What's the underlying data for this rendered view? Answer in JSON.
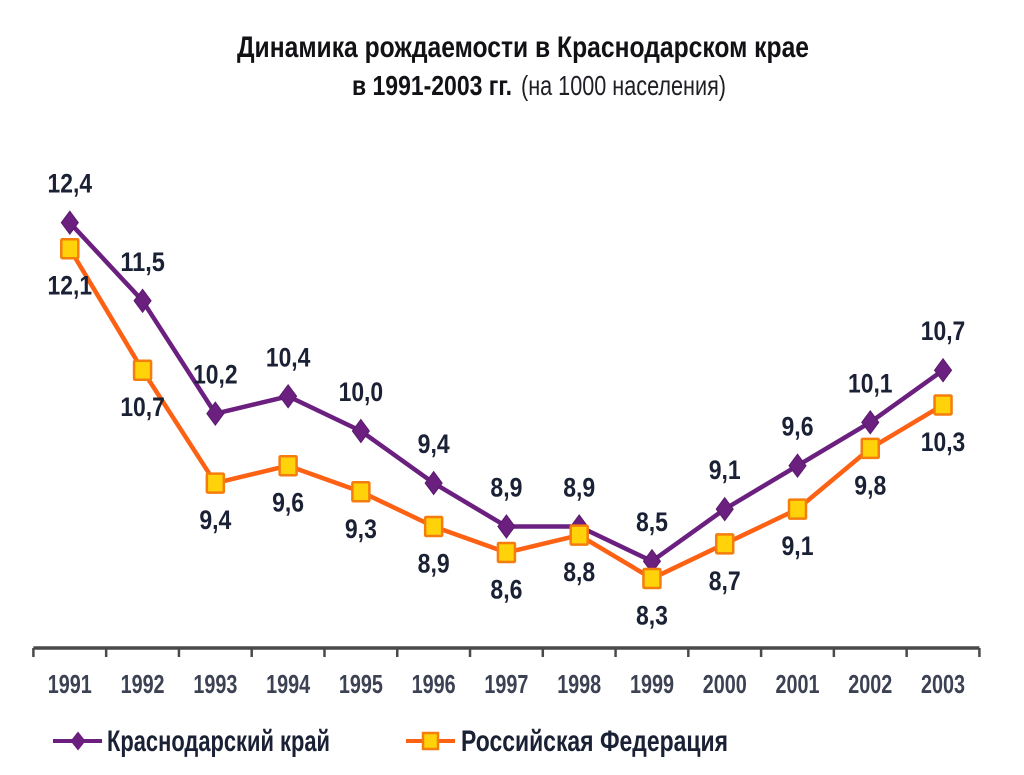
{
  "title": {
    "line1": "Динамика рождаемости в Краснодарском крае",
    "line2_bold": "в 1991-2003 гг.",
    "line2_regular": "(на 1000 населения)"
  },
  "chart_data": {
    "type": "line",
    "categories": [
      "1991",
      "1992",
      "1993",
      "1994",
      "1995",
      "1996",
      "1997",
      "1998",
      "1999",
      "2000",
      "2001",
      "2002",
      "2003"
    ],
    "series": [
      {
        "name": "Краснодарский край",
        "color": "#6B2080",
        "marker": "diamond",
        "marker_fill": "#6B2080",
        "marker_stroke": "#5A1A6C",
        "label_position": "above",
        "values": [
          12.4,
          11.5,
          10.2,
          10.4,
          10.0,
          9.4,
          8.9,
          8.9,
          8.5,
          9.1,
          9.6,
          10.1,
          10.7
        ],
        "labels": [
          "12,4",
          "11,5",
          "10,2",
          "10,4",
          "10,0",
          "9,4",
          "8,9",
          "8,9",
          "8,5",
          "9,1",
          "9,6",
          "10,1",
          "10,7"
        ]
      },
      {
        "name": "Российская Федерация",
        "color": "#FC6114",
        "marker": "square",
        "marker_fill": "#FFD20A",
        "marker_stroke": "#F57D0D",
        "label_position": "below",
        "values": [
          12.1,
          10.7,
          9.4,
          9.6,
          9.3,
          8.9,
          8.6,
          8.8,
          8.3,
          8.7,
          9.1,
          9.8,
          10.3
        ],
        "labels": [
          "12,1",
          "10,7",
          "9,4",
          "9,6",
          "9,3",
          "8,9",
          "8,6",
          "8,8",
          "8,3",
          "8,7",
          "9,1",
          "9,8",
          "10,3"
        ]
      }
    ],
    "ylim": [
      7.5,
      13.0
    ],
    "grid": false,
    "y_axis_visible": false,
    "decimal_separator": ",",
    "legend_position": "bottom",
    "axis_color": "#4a4a4a"
  }
}
